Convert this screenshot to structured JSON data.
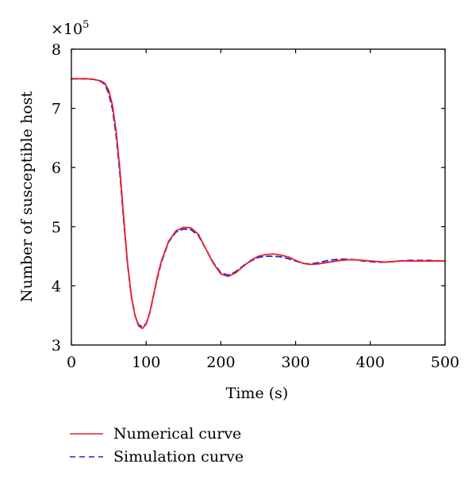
{
  "chart_data": {
    "type": "line",
    "xlabel": "Time (s)",
    "ylabel": "Number of susceptible host",
    "y_multiplier_label": "×10",
    "y_multiplier_exponent": "5",
    "xlim": [
      0,
      500
    ],
    "ylim": [
      3,
      8
    ],
    "x_ticks": [
      0,
      100,
      200,
      300,
      400,
      500
    ],
    "y_ticks": [
      3,
      4,
      5,
      6,
      7,
      8
    ],
    "grid": false,
    "legend_position": "bottom-left, below plot",
    "series": [
      {
        "name": "Numerical curve",
        "color": "#e8202a",
        "dash": "solid",
        "x": [
          0,
          10,
          20,
          30,
          40,
          45,
          50,
          55,
          60,
          65,
          70,
          75,
          80,
          85,
          90,
          95,
          100,
          105,
          110,
          115,
          120,
          130,
          140,
          150,
          160,
          170,
          180,
          190,
          200,
          210,
          220,
          230,
          240,
          250,
          260,
          270,
          280,
          290,
          300,
          310,
          320,
          330,
          340,
          350,
          360,
          370,
          380,
          390,
          400,
          410,
          420,
          430,
          440,
          450,
          460,
          470,
          480,
          490,
          500
        ],
        "values": [
          7.5,
          7.5,
          7.5,
          7.49,
          7.46,
          7.42,
          7.3,
          7.05,
          6.6,
          5.95,
          5.15,
          4.4,
          3.85,
          3.5,
          3.32,
          3.28,
          3.35,
          3.55,
          3.85,
          4.15,
          4.4,
          4.75,
          4.93,
          4.99,
          4.98,
          4.87,
          4.62,
          4.38,
          4.2,
          4.16,
          4.22,
          4.33,
          4.43,
          4.5,
          4.53,
          4.54,
          4.52,
          4.49,
          4.43,
          4.38,
          4.36,
          4.37,
          4.39,
          4.41,
          4.43,
          4.44,
          4.44,
          4.43,
          4.42,
          4.41,
          4.4,
          4.41,
          4.42,
          4.42,
          4.42,
          4.42,
          4.42,
          4.42,
          4.42
        ]
      },
      {
        "name": "Simulation curve",
        "color": "#1f23d6",
        "dash": "dashed",
        "x": [
          0,
          10,
          20,
          30,
          40,
          45,
          50,
          55,
          60,
          65,
          70,
          75,
          80,
          85,
          90,
          95,
          100,
          105,
          110,
          115,
          120,
          130,
          140,
          150,
          160,
          170,
          180,
          190,
          200,
          210,
          220,
          230,
          240,
          250,
          260,
          270,
          280,
          290,
          300,
          310,
          320,
          330,
          340,
          350,
          360,
          370,
          380,
          390,
          400,
          410,
          420,
          430,
          440,
          450,
          460,
          470,
          480,
          490,
          500
        ],
        "values": [
          7.5,
          7.5,
          7.5,
          7.49,
          7.45,
          7.4,
          7.25,
          6.98,
          6.52,
          5.88,
          5.1,
          4.38,
          3.84,
          3.5,
          3.34,
          3.31,
          3.36,
          3.55,
          3.84,
          4.13,
          4.38,
          4.74,
          4.91,
          4.96,
          4.95,
          4.85,
          4.62,
          4.39,
          4.22,
          4.18,
          4.24,
          4.34,
          4.42,
          4.48,
          4.5,
          4.5,
          4.49,
          4.46,
          4.42,
          4.38,
          4.37,
          4.39,
          4.42,
          4.44,
          4.45,
          4.45,
          4.44,
          4.42,
          4.41,
          4.4,
          4.4,
          4.41,
          4.42,
          4.43,
          4.43,
          4.43,
          4.43,
          4.42,
          4.42
        ]
      }
    ]
  }
}
